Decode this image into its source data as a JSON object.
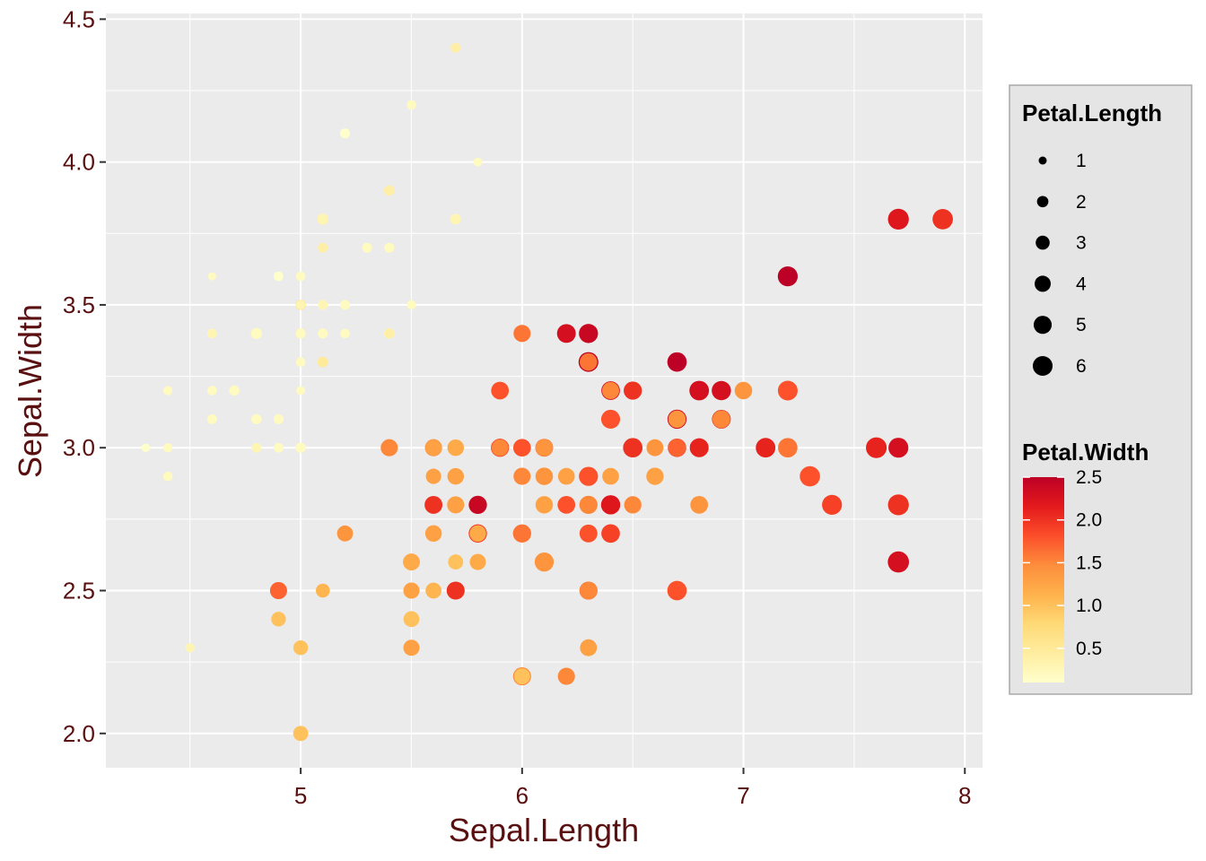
{
  "chart_data": {
    "type": "scatter",
    "xlabel": "Sepal.Length",
    "ylabel": "Sepal.Width",
    "xlim": [
      4.12,
      8.08
    ],
    "ylim": [
      1.88,
      4.52
    ],
    "x_ticks": [
      5,
      6,
      7,
      8
    ],
    "x_tick_labels": [
      "5",
      "6",
      "7",
      "8"
    ],
    "y_ticks": [
      2.0,
      2.5,
      3.0,
      3.5,
      4.0,
      4.5
    ],
    "y_tick_labels": [
      "2.0",
      "2.5",
      "3.0",
      "3.5",
      "4.0",
      "4.5"
    ],
    "grid": true,
    "size_legend": {
      "title": "Petal.Length",
      "values": [
        1,
        2,
        3,
        4,
        5,
        6
      ],
      "labels": [
        "1",
        "2",
        "3",
        "4",
        "5",
        "6"
      ]
    },
    "color_legend": {
      "title": "Petal.Width",
      "range": [
        0.1,
        2.5
      ],
      "ticks": [
        0.5,
        1.0,
        1.5,
        2.0,
        2.5
      ],
      "tick_labels": [
        "0.5",
        "1.0",
        "1.5",
        "2.0",
        "2.5"
      ],
      "low_color": "#FFFFCC",
      "mid_colors": [
        "#FFEDA0",
        "#FED976",
        "#FEB24C",
        "#FD8D3C",
        "#FC4E2A",
        "#E31A1C"
      ],
      "high_color": "#BD0026"
    },
    "columns": [
      "sepal_length",
      "sepal_width",
      "petal_length",
      "petal_width"
    ],
    "points": [
      [
        5.1,
        3.5,
        1.4,
        0.2
      ],
      [
        4.9,
        3.0,
        1.4,
        0.2
      ],
      [
        4.7,
        3.2,
        1.3,
        0.2
      ],
      [
        4.6,
        3.1,
        1.5,
        0.2
      ],
      [
        5.0,
        3.6,
        1.4,
        0.2
      ],
      [
        5.4,
        3.9,
        1.7,
        0.4
      ],
      [
        4.6,
        3.4,
        1.4,
        0.3
      ],
      [
        5.0,
        3.4,
        1.5,
        0.2
      ],
      [
        4.4,
        2.9,
        1.4,
        0.2
      ],
      [
        4.9,
        3.1,
        1.5,
        0.1
      ],
      [
        5.4,
        3.7,
        1.5,
        0.2
      ],
      [
        4.8,
        3.4,
        1.6,
        0.2
      ],
      [
        4.8,
        3.0,
        1.4,
        0.1
      ],
      [
        4.3,
        3.0,
        1.1,
        0.1
      ],
      [
        5.8,
        4.0,
        1.2,
        0.2
      ],
      [
        5.7,
        4.4,
        1.5,
        0.4
      ],
      [
        5.4,
        3.9,
        1.3,
        0.4
      ],
      [
        5.1,
        3.5,
        1.4,
        0.3
      ],
      [
        5.7,
        3.8,
        1.7,
        0.3
      ],
      [
        5.1,
        3.8,
        1.5,
        0.3
      ],
      [
        5.4,
        3.4,
        1.7,
        0.2
      ],
      [
        5.1,
        3.7,
        1.5,
        0.4
      ],
      [
        4.6,
        3.6,
        1.0,
        0.2
      ],
      [
        5.1,
        3.3,
        1.7,
        0.5
      ],
      [
        4.8,
        3.4,
        1.9,
        0.2
      ],
      [
        5.0,
        3.0,
        1.6,
        0.2
      ],
      [
        5.0,
        3.4,
        1.6,
        0.4
      ],
      [
        5.2,
        3.5,
        1.5,
        0.2
      ],
      [
        5.2,
        3.4,
        1.4,
        0.2
      ],
      [
        4.7,
        3.2,
        1.6,
        0.2
      ],
      [
        4.8,
        3.1,
        1.6,
        0.2
      ],
      [
        5.4,
        3.4,
        1.5,
        0.4
      ],
      [
        5.2,
        4.1,
        1.5,
        0.1
      ],
      [
        5.5,
        4.2,
        1.4,
        0.2
      ],
      [
        4.9,
        3.1,
        1.5,
        0.2
      ],
      [
        5.0,
        3.2,
        1.2,
        0.2
      ],
      [
        5.5,
        3.5,
        1.3,
        0.2
      ],
      [
        4.9,
        3.6,
        1.4,
        0.1
      ],
      [
        4.4,
        3.0,
        1.3,
        0.2
      ],
      [
        5.1,
        3.4,
        1.5,
        0.2
      ],
      [
        5.0,
        3.5,
        1.3,
        0.3
      ],
      [
        4.5,
        2.3,
        1.3,
        0.3
      ],
      [
        4.4,
        3.2,
        1.3,
        0.2
      ],
      [
        5.0,
        3.5,
        1.6,
        0.6
      ],
      [
        5.1,
        3.8,
        1.9,
        0.4
      ],
      [
        4.8,
        3.0,
        1.4,
        0.3
      ],
      [
        5.1,
        3.8,
        1.6,
        0.2
      ],
      [
        4.6,
        3.2,
        1.4,
        0.2
      ],
      [
        5.3,
        3.7,
        1.5,
        0.2
      ],
      [
        5.0,
        3.3,
        1.4,
        0.2
      ],
      [
        7.0,
        3.2,
        4.7,
        1.4
      ],
      [
        6.4,
        3.2,
        4.5,
        1.5
      ],
      [
        6.9,
        3.1,
        4.9,
        1.5
      ],
      [
        5.5,
        2.3,
        4.0,
        1.3
      ],
      [
        6.5,
        2.8,
        4.6,
        1.5
      ],
      [
        5.7,
        2.8,
        4.5,
        1.3
      ],
      [
        6.3,
        3.3,
        4.7,
        1.6
      ],
      [
        4.9,
        2.4,
        3.3,
        1.0
      ],
      [
        6.6,
        2.9,
        4.6,
        1.3
      ],
      [
        5.2,
        2.7,
        3.9,
        1.4
      ],
      [
        5.0,
        2.0,
        3.5,
        1.0
      ],
      [
        5.9,
        3.0,
        4.2,
        1.5
      ],
      [
        6.0,
        2.2,
        4.0,
        1.0
      ],
      [
        6.1,
        2.9,
        4.7,
        1.4
      ],
      [
        5.6,
        2.9,
        3.6,
        1.3
      ],
      [
        6.7,
        3.1,
        4.4,
        1.4
      ],
      [
        5.6,
        3.0,
        4.5,
        1.5
      ],
      [
        5.8,
        2.7,
        4.1,
        1.0
      ],
      [
        6.2,
        2.2,
        4.5,
        1.5
      ],
      [
        5.6,
        2.5,
        3.9,
        1.1
      ],
      [
        5.9,
        3.2,
        4.8,
        1.8
      ],
      [
        6.1,
        2.8,
        4.0,
        1.3
      ],
      [
        6.3,
        2.5,
        4.9,
        1.5
      ],
      [
        6.1,
        2.8,
        4.7,
        1.2
      ],
      [
        6.4,
        2.9,
        4.3,
        1.3
      ],
      [
        6.6,
        3.0,
        4.4,
        1.4
      ],
      [
        6.8,
        2.8,
        4.8,
        1.4
      ],
      [
        6.7,
        3.0,
        5.0,
        1.7
      ],
      [
        6.0,
        2.9,
        4.5,
        1.5
      ],
      [
        5.7,
        2.6,
        3.5,
        1.0
      ],
      [
        5.5,
        2.4,
        3.8,
        1.1
      ],
      [
        5.5,
        2.4,
        3.7,
        1.0
      ],
      [
        5.8,
        2.7,
        3.9,
        1.2
      ],
      [
        6.0,
        2.7,
        5.1,
        1.6
      ],
      [
        5.4,
        3.0,
        4.5,
        1.5
      ],
      [
        6.0,
        3.4,
        4.5,
        1.6
      ],
      [
        6.7,
        3.1,
        4.7,
        1.5
      ],
      [
        6.3,
        2.3,
        4.4,
        1.3
      ],
      [
        5.6,
        3.0,
        4.1,
        1.3
      ],
      [
        5.5,
        2.5,
        4.0,
        1.3
      ],
      [
        5.5,
        2.6,
        4.4,
        1.2
      ],
      [
        6.1,
        3.0,
        4.6,
        1.4
      ],
      [
        5.8,
        2.6,
        4.0,
        1.2
      ],
      [
        5.0,
        2.3,
        3.3,
        1.0
      ],
      [
        5.6,
        2.7,
        4.2,
        1.3
      ],
      [
        5.7,
        3.0,
        4.2,
        1.2
      ],
      [
        5.7,
        2.9,
        4.2,
        1.3
      ],
      [
        6.2,
        2.9,
        4.3,
        1.3
      ],
      [
        5.1,
        2.5,
        3.0,
        1.1
      ],
      [
        5.7,
        2.8,
        4.1,
        1.3
      ],
      [
        6.3,
        3.3,
        6.0,
        2.5
      ],
      [
        5.8,
        2.7,
        5.1,
        1.9
      ],
      [
        7.1,
        3.0,
        5.9,
        2.1
      ],
      [
        6.3,
        2.9,
        5.6,
        1.8
      ],
      [
        6.5,
        3.0,
        5.8,
        2.2
      ],
      [
        7.6,
        3.0,
        6.6,
        2.1
      ],
      [
        4.9,
        2.5,
        4.5,
        1.7
      ],
      [
        7.3,
        2.9,
        6.3,
        1.8
      ],
      [
        6.7,
        2.5,
        5.8,
        1.8
      ],
      [
        7.2,
        3.6,
        6.1,
        2.5
      ],
      [
        6.5,
        3.2,
        5.1,
        2.0
      ],
      [
        6.4,
        2.7,
        5.3,
        1.9
      ],
      [
        6.8,
        3.0,
        5.5,
        2.1
      ],
      [
        5.7,
        2.5,
        5.0,
        2.0
      ],
      [
        5.8,
        2.8,
        5.1,
        2.4
      ],
      [
        6.4,
        3.2,
        5.3,
        2.3
      ],
      [
        6.5,
        3.0,
        5.5,
        1.8
      ],
      [
        7.7,
        3.8,
        6.7,
        2.2
      ],
      [
        7.7,
        2.6,
        6.9,
        2.3
      ],
      [
        6.0,
        2.2,
        5.0,
        1.5
      ],
      [
        6.9,
        3.2,
        5.7,
        2.3
      ],
      [
        5.6,
        2.8,
        4.9,
        2.0
      ],
      [
        7.7,
        2.8,
        6.7,
        2.0
      ],
      [
        6.3,
        2.7,
        4.9,
        1.8
      ],
      [
        6.7,
        3.3,
        5.7,
        2.1
      ],
      [
        7.2,
        3.2,
        6.0,
        1.8
      ],
      [
        6.2,
        2.8,
        4.8,
        1.8
      ],
      [
        6.1,
        3.0,
        4.9,
        1.8
      ],
      [
        6.4,
        2.8,
        5.6,
        2.1
      ],
      [
        7.2,
        3.0,
        5.8,
        1.6
      ],
      [
        7.4,
        2.8,
        6.1,
        1.9
      ],
      [
        7.9,
        3.8,
        6.4,
        2.0
      ],
      [
        6.4,
        2.8,
        5.6,
        2.2
      ],
      [
        6.3,
        2.8,
        5.1,
        1.5
      ],
      [
        6.1,
        2.6,
        5.6,
        1.4
      ],
      [
        7.7,
        3.0,
        6.1,
        2.3
      ],
      [
        6.3,
        3.4,
        5.6,
        2.4
      ],
      [
        6.4,
        3.1,
        5.5,
        1.8
      ],
      [
        6.0,
        3.0,
        4.8,
        1.8
      ],
      [
        6.9,
        3.1,
        5.4,
        2.1
      ],
      [
        6.7,
        3.1,
        5.6,
        2.4
      ],
      [
        6.9,
        3.1,
        5.1,
        2.3
      ],
      [
        5.8,
        2.7,
        5.1,
        1.9
      ],
      [
        6.8,
        3.2,
        5.9,
        2.3
      ],
      [
        6.7,
        3.3,
        5.7,
        2.5
      ],
      [
        6.7,
        3.0,
        5.2,
        2.3
      ],
      [
        6.3,
        2.5,
        5.0,
        1.9
      ],
      [
        6.5,
        3.0,
        5.2,
        2.0
      ],
      [
        6.2,
        3.4,
        5.4,
        2.3
      ],
      [
        5.9,
        3.0,
        5.1,
        1.8
      ]
    ]
  }
}
